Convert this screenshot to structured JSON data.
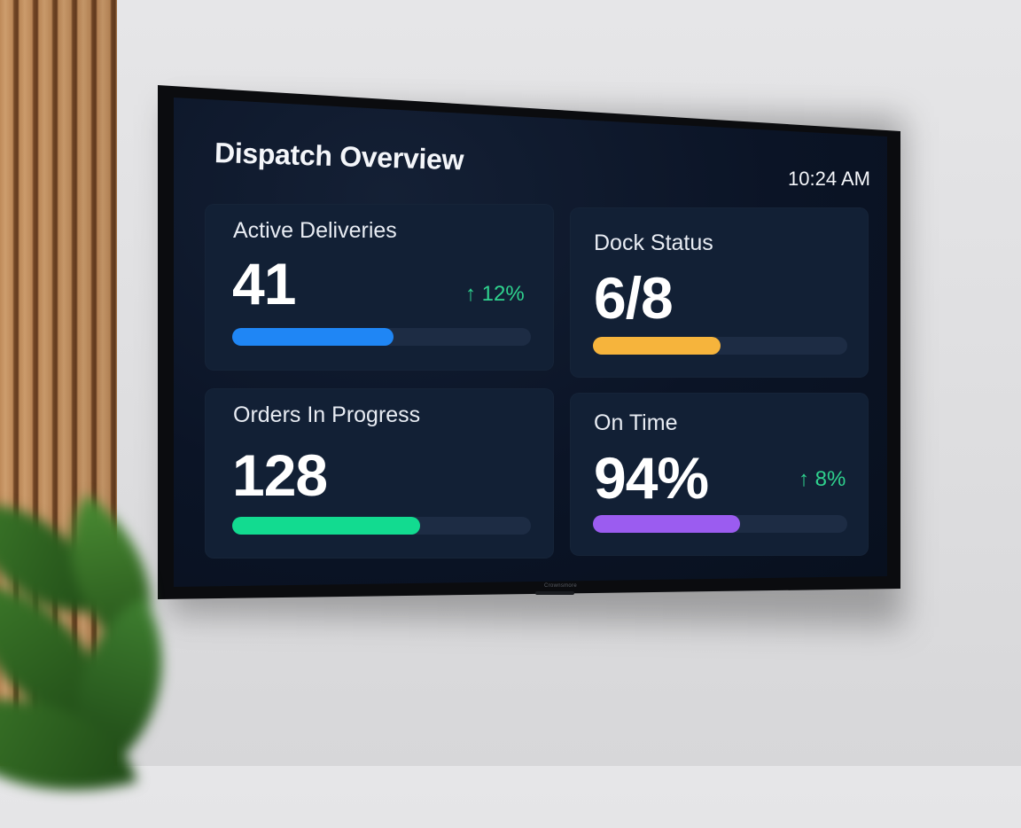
{
  "dashboard": {
    "title": "Dispatch Overview",
    "time": "10:24 AM"
  },
  "metrics": [
    {
      "label": "Active Deliveries",
      "value": "41",
      "trend": "↑ 12%",
      "progress": 0.54,
      "color": "#1f86f5"
    },
    {
      "label": "Dock Status",
      "value": "6/8",
      "trend": "",
      "progress": 0.5,
      "color": "#f6b43c"
    },
    {
      "label": "Orders In Progress",
      "value": "128",
      "trend": "",
      "progress": 0.63,
      "color": "#12db90"
    },
    {
      "label": "On Time",
      "value": "94%",
      "trend": "↑ 8%",
      "progress": 0.58,
      "color": "#9b5cf0"
    }
  ],
  "tv": {
    "brand": "Crownsmore"
  }
}
